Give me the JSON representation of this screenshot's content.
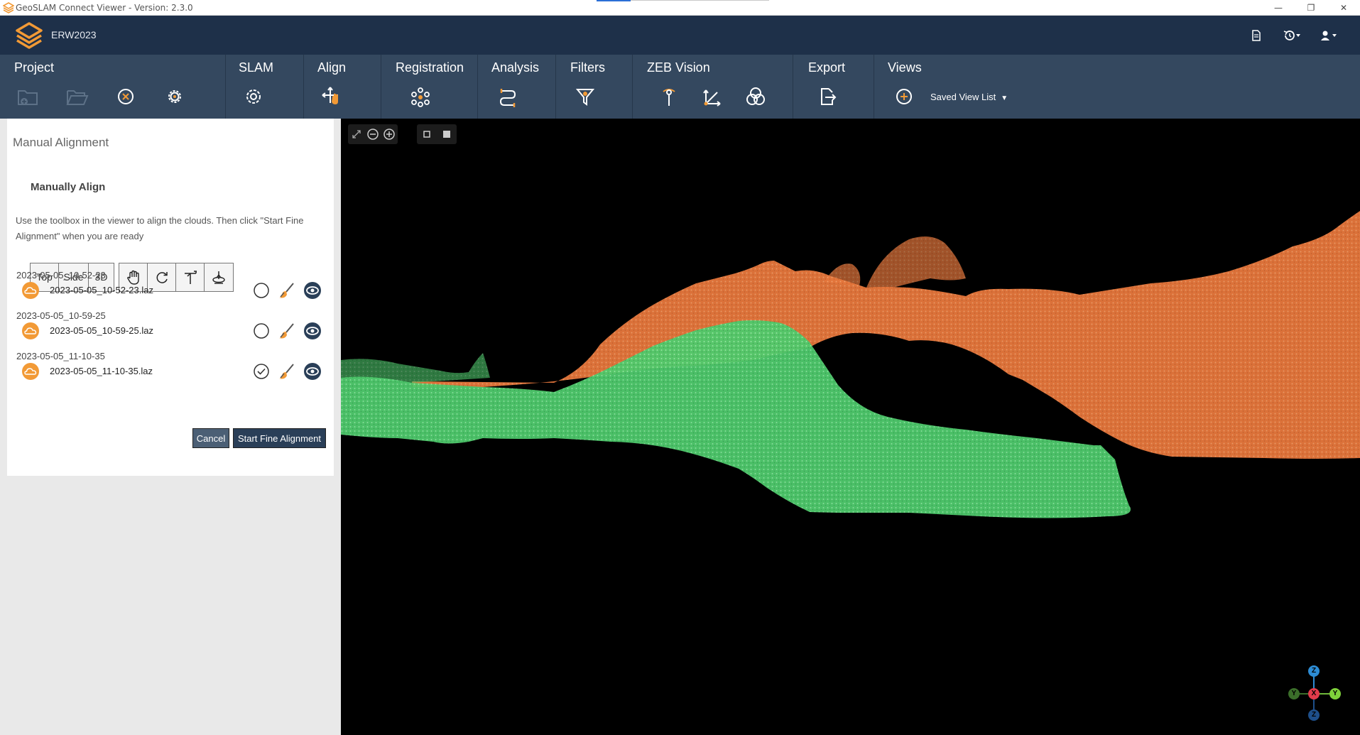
{
  "window": {
    "title": "GeoSLAM Connect Viewer - Version: 2.3.0",
    "minimize": "—",
    "restore": "❐",
    "close": "✕"
  },
  "header": {
    "project_name": "ERW2023",
    "icons": [
      "document-icon",
      "history-icon",
      "user-icon"
    ]
  },
  "toolbar": {
    "groups": [
      {
        "label": "Project",
        "buttons": [
          "add-project-icon",
          "open-folder-icon",
          "close-circle-icon",
          "settings-gear-icon"
        ]
      },
      {
        "label": "SLAM",
        "buttons": [
          "slam-process-icon"
        ]
      },
      {
        "label": "Align",
        "buttons": [
          "align-move-icon"
        ]
      },
      {
        "label": "Registration",
        "buttons": [
          "registration-nodes-icon"
        ]
      },
      {
        "label": "Analysis",
        "buttons": [
          "analysis-icon"
        ]
      },
      {
        "label": "Filters",
        "buttons": [
          "filter-funnel-icon"
        ]
      },
      {
        "label": "ZEB Vision",
        "buttons": [
          "vision-pin-icon",
          "vision-axes-icon",
          "vision-colorize-icon"
        ]
      },
      {
        "label": "Export",
        "buttons": [
          "export-file-icon"
        ]
      },
      {
        "label": "Views",
        "buttons": [
          "add-view-icon"
        ]
      }
    ],
    "saved_view_list": "Saved View List"
  },
  "panel": {
    "title": "Manual Alignment",
    "section_title": "Manually Align",
    "instructions": "Use the toolbox in the viewer to align the clouds. Then click \"Start Fine Alignment\" when you are ready",
    "view_buttons": [
      "Top",
      "Side",
      "3D"
    ],
    "tool_buttons": [
      "pan-hand-icon",
      "rotate-icon",
      "translate-axis-icon",
      "rotate-z-icon"
    ],
    "groups": [
      {
        "label": "2023-05-05_10-52-23",
        "file": "2023-05-05_10-52-23.laz",
        "fixed": false
      },
      {
        "label": "2023-05-05_10-59-25",
        "file": "2023-05-05_10-59-25.laz",
        "fixed": false
      },
      {
        "label": "2023-05-05_11-10-35",
        "file": "2023-05-05_11-10-35.laz",
        "fixed": true
      }
    ],
    "cancel_label": "Cancel",
    "start_label": "Start Fine Alignment"
  },
  "viewer": {
    "controls": [
      "expand-icon",
      "zoom-out-icon",
      "zoom-in-icon",
      "point-size-small-icon",
      "point-size-large-icon"
    ],
    "cloud_colors": {
      "orange": "#f08a4b",
      "green": "#5fd37a"
    },
    "axis_labels": {
      "z_top": "Z",
      "y_left": "Y",
      "x_center": "X",
      "y_right": "Y",
      "z_bottom": "Z"
    }
  },
  "colors": {
    "header_bg": "#1e3049",
    "toolbar_bg": "#34485f",
    "accent_orange": "#f29a36"
  }
}
